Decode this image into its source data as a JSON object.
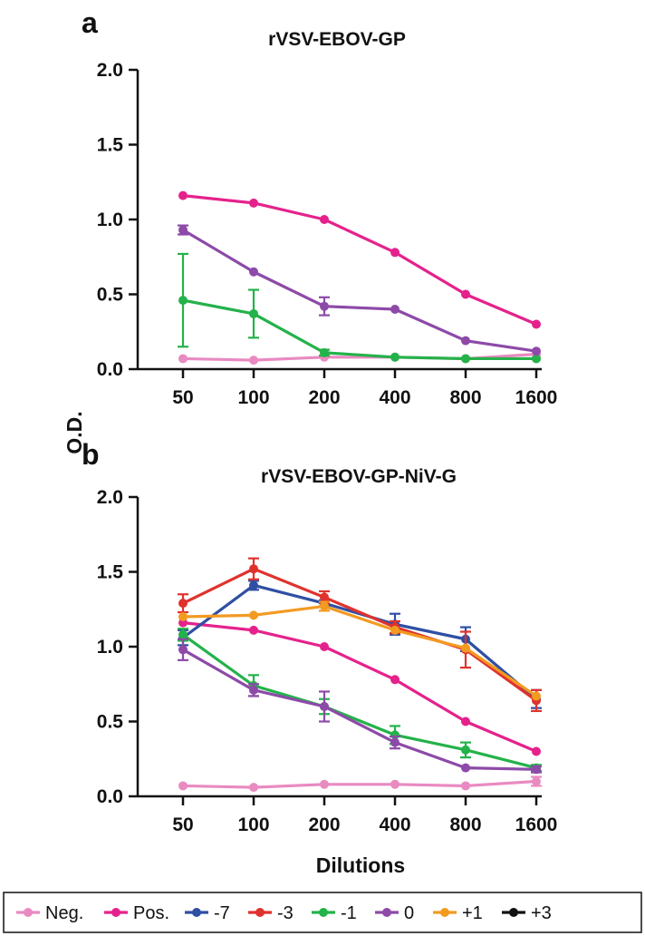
{
  "chart_data": [
    {
      "type": "line",
      "panel_label": "a",
      "title": "rVSV-EBOV-GP",
      "xlabel": "",
      "ylabel": "O.D.",
      "x_scale": "log2-categorical",
      "categories": [
        "50",
        "100",
        "200",
        "400",
        "800",
        "1600"
      ],
      "ylim": [
        0,
        2.0
      ],
      "y_ticks": [
        "0.0",
        "0.5",
        "1.0",
        "1.5",
        "2.0"
      ],
      "grid": false,
      "series": [
        {
          "name": "Neg.",
          "color": "#e98ac1",
          "values": [
            0.07,
            0.06,
            0.08,
            0.08,
            0.07,
            0.1
          ],
          "errors": [
            0,
            0,
            0,
            0,
            0,
            0
          ]
        },
        {
          "name": "Pos.",
          "color": "#e5228c",
          "values": [
            1.16,
            1.11,
            1.0,
            0.78,
            0.5,
            0.3
          ],
          "errors": [
            0,
            0,
            0,
            0,
            0,
            0
          ]
        },
        {
          "name": "-1",
          "color": "#24b24a",
          "values": [
            0.46,
            0.37,
            0.11,
            0.08,
            0.07,
            0.07
          ],
          "errors": [
            0.31,
            0.16,
            0.02,
            0,
            0,
            0
          ]
        },
        {
          "name": "0",
          "color": "#8d4aa8",
          "values": [
            0.93,
            0.65,
            0.42,
            0.4,
            0.19,
            0.12
          ],
          "errors": [
            0.03,
            0,
            0.06,
            0,
            0,
            0
          ]
        }
      ]
    },
    {
      "type": "line",
      "panel_label": "b",
      "title": "rVSV-EBOV-GP-NiV-G",
      "xlabel": "Dilutions",
      "ylabel": "O.D.",
      "x_scale": "log2-categorical",
      "categories": [
        "50",
        "100",
        "200",
        "400",
        "800",
        "1600"
      ],
      "ylim": [
        0,
        2.0
      ],
      "y_ticks": [
        "0.0",
        "0.5",
        "1.0",
        "1.5",
        "2.0"
      ],
      "grid": false,
      "series": [
        {
          "name": "Neg.",
          "color": "#e98ac1",
          "values": [
            0.07,
            0.06,
            0.08,
            0.08,
            0.07,
            0.1
          ],
          "errors": [
            0,
            0,
            0,
            0,
            0,
            0.03
          ]
        },
        {
          "name": "Pos.",
          "color": "#e5228c",
          "values": [
            1.16,
            1.11,
            1.0,
            0.78,
            0.5,
            0.3
          ],
          "errors": [
            0,
            0,
            0,
            0,
            0,
            0
          ]
        },
        {
          "name": "-7",
          "color": "#2f4fa3",
          "values": [
            1.06,
            1.41,
            1.29,
            1.15,
            1.05,
            0.65
          ],
          "errors": [
            0.05,
            0.03,
            0.02,
            0.07,
            0.08,
            0.06
          ]
        },
        {
          "name": "-3",
          "color": "#e0322d",
          "values": [
            1.29,
            1.52,
            1.33,
            1.13,
            0.98,
            0.64
          ],
          "errors": [
            0.06,
            0.07,
            0.04,
            0.04,
            0.12,
            0.07
          ]
        },
        {
          "name": "-1",
          "color": "#24b24a",
          "values": [
            1.08,
            0.74,
            0.6,
            0.41,
            0.31,
            0.19
          ],
          "errors": [
            0.04,
            0.07,
            0.05,
            0.06,
            0.05,
            0.02
          ]
        },
        {
          "name": "0",
          "color": "#8d4aa8",
          "values": [
            0.98,
            0.71,
            0.6,
            0.36,
            0.19,
            0.18
          ],
          "errors": [
            0.07,
            0.04,
            0.1,
            0.04,
            0,
            0.02
          ]
        },
        {
          "name": "+1",
          "color": "#f39a21",
          "values": [
            1.2,
            1.21,
            1.27,
            1.11,
            0.99,
            0.67
          ],
          "errors": [
            0,
            0,
            0.03,
            0,
            0,
            0
          ]
        }
      ]
    }
  ],
  "legend": {
    "placement": "bottom",
    "entries": [
      {
        "name": "Neg.",
        "color": "#e98ac1"
      },
      {
        "name": "Pos.",
        "color": "#e5228c"
      },
      {
        "name": "-7",
        "color": "#2f4fa3"
      },
      {
        "name": "-3",
        "color": "#e0322d"
      },
      {
        "name": "-1",
        "color": "#24b24a"
      },
      {
        "name": "0",
        "color": "#8d4aa8"
      },
      {
        "name": "+1",
        "color": "#f39a21"
      },
      {
        "name": "+3",
        "color": "#111111"
      }
    ]
  }
}
